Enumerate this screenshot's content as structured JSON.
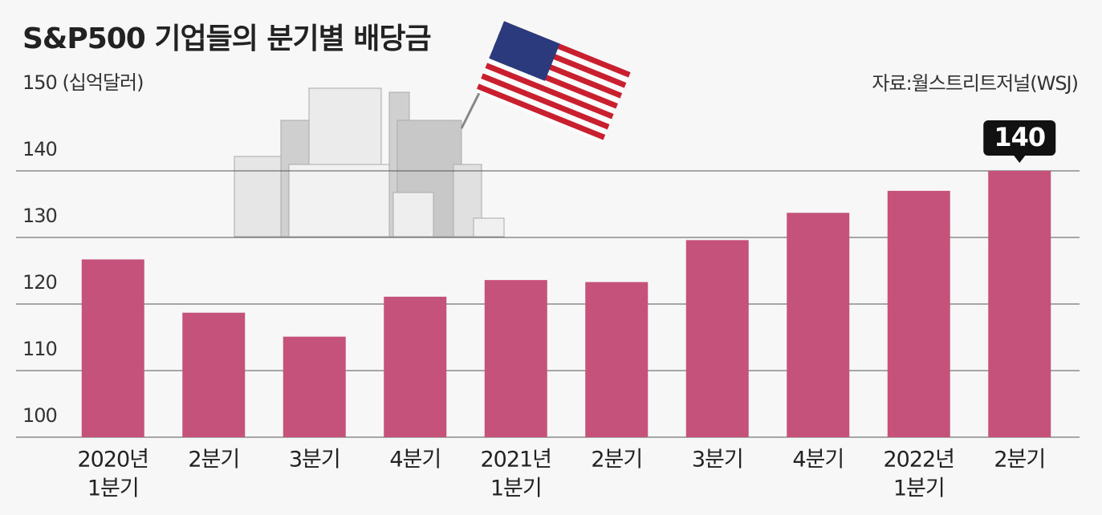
{
  "chart_data": {
    "type": "bar",
    "title": "S&P500 기업들의 분기별 배당금",
    "source": "자료:월스트리트저널(WSJ)",
    "categories": [
      [
        "2020년",
        "1분기"
      ],
      [
        "2분기"
      ],
      [
        "3분기"
      ],
      [
        "4분기"
      ],
      [
        "2021년",
        "1분기"
      ],
      [
        "2분기"
      ],
      [
        "3분기"
      ],
      [
        "4분기"
      ],
      [
        "2022년",
        "1분기"
      ],
      [
        "2분기"
      ]
    ],
    "values": [
      126.7,
      118.7,
      115.1,
      121.1,
      123.6,
      123.3,
      129.6,
      133.7,
      137.0,
      140
    ],
    "color": "#c4527a",
    "ylim": [
      100,
      150
    ],
    "yticks": [
      100,
      110,
      120,
      130,
      140,
      {
        "value": 150,
        "label": "150 (십억달러)"
      }
    ],
    "grid": true,
    "highlight": 9
  }
}
